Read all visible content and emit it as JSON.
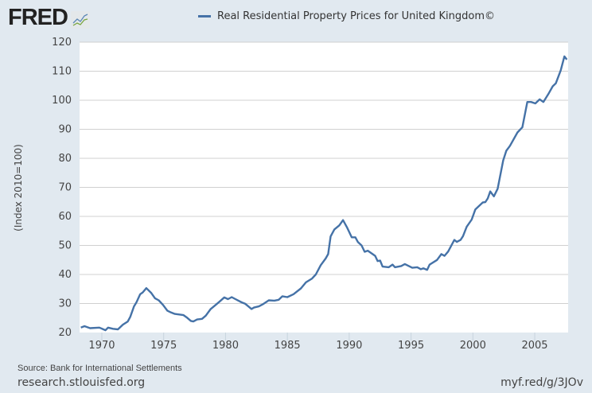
{
  "header": {
    "logo": "FRED",
    "legend_label": "Real Residential Property Prices for United Kingdom©"
  },
  "footer": {
    "source": "Source: Bank for International Settlements",
    "site": "research.stlouisfed.org",
    "short_url": "myf.red/g/3JOv"
  },
  "colors": {
    "series": "#4572a7",
    "background": "#e1e9f0",
    "plot": "#ffffff",
    "grid": "#d0d0d0"
  },
  "chart_data": {
    "type": "line",
    "title": "",
    "xlabel": "",
    "ylabel": "(Index 2010=100)",
    "xlim": [
      1968.2,
      2007.7
    ],
    "ylim": [
      20,
      120
    ],
    "grid": true,
    "legend": "top",
    "x_ticks": [
      "1970",
      "1975",
      "1980",
      "1985",
      "1990",
      "1995",
      "2000",
      "2005"
    ],
    "y_ticks": [
      "20",
      "30",
      "40",
      "50",
      "60",
      "70",
      "80",
      "90",
      "100",
      "110",
      "120"
    ],
    "series": [
      {
        "name": "Real Residential Property Prices for United Kingdom©",
        "points": [
          [
            1968.3,
            21.7
          ],
          [
            1968.6,
            22.2
          ],
          [
            1969.05,
            21.5
          ],
          [
            1969.8,
            21.7
          ],
          [
            1970.3,
            20.8
          ],
          [
            1970.5,
            21.7
          ],
          [
            1970.9,
            21.3
          ],
          [
            1971.3,
            21.1
          ],
          [
            1971.7,
            22.7
          ],
          [
            1972.1,
            23.8
          ],
          [
            1972.3,
            25.4
          ],
          [
            1972.6,
            29.0
          ],
          [
            1972.8,
            30.4
          ],
          [
            1973.1,
            33.2
          ],
          [
            1973.3,
            33.8
          ],
          [
            1973.6,
            35.3
          ],
          [
            1974.0,
            33.6
          ],
          [
            1974.3,
            31.8
          ],
          [
            1974.6,
            31.1
          ],
          [
            1974.95,
            29.5
          ],
          [
            1975.3,
            27.5
          ],
          [
            1975.6,
            26.9
          ],
          [
            1975.9,
            26.4
          ],
          [
            1976.6,
            26.0
          ],
          [
            1976.9,
            25.1
          ],
          [
            1977.2,
            24.0
          ],
          [
            1977.4,
            23.8
          ],
          [
            1977.7,
            24.5
          ],
          [
            1978.1,
            24.7
          ],
          [
            1978.4,
            25.8
          ],
          [
            1978.8,
            28.1
          ],
          [
            1979.2,
            29.5
          ],
          [
            1979.5,
            30.6
          ],
          [
            1979.9,
            32.1
          ],
          [
            1980.2,
            31.5
          ],
          [
            1980.5,
            32.2
          ],
          [
            1980.8,
            31.5
          ],
          [
            1981.3,
            30.4
          ],
          [
            1981.6,
            29.9
          ],
          [
            1982.1,
            28.1
          ],
          [
            1982.3,
            28.6
          ],
          [
            1982.7,
            29.0
          ],
          [
            1983.0,
            29.7
          ],
          [
            1983.5,
            31.1
          ],
          [
            1983.95,
            31.0
          ],
          [
            1984.3,
            31.3
          ],
          [
            1984.6,
            32.5
          ],
          [
            1985.0,
            32.2
          ],
          [
            1985.5,
            33.2
          ],
          [
            1986.1,
            35.2
          ],
          [
            1986.5,
            37.3
          ],
          [
            1987.0,
            38.6
          ],
          [
            1987.3,
            40.0
          ],
          [
            1987.7,
            43.2
          ],
          [
            1988.1,
            45.5
          ],
          [
            1988.3,
            47.0
          ],
          [
            1988.5,
            53.1
          ],
          [
            1988.8,
            55.5
          ],
          [
            1989.2,
            56.9
          ],
          [
            1989.5,
            58.7
          ],
          [
            1989.85,
            56.0
          ],
          [
            1990.2,
            52.8
          ],
          [
            1990.5,
            52.8
          ],
          [
            1990.7,
            51.2
          ],
          [
            1991.0,
            50.0
          ],
          [
            1991.25,
            47.8
          ],
          [
            1991.5,
            48.2
          ],
          [
            1992.1,
            46.4
          ],
          [
            1992.3,
            44.6
          ],
          [
            1992.5,
            44.8
          ],
          [
            1992.7,
            42.7
          ],
          [
            1993.2,
            42.5
          ],
          [
            1993.5,
            43.4
          ],
          [
            1993.7,
            42.5
          ],
          [
            1994.2,
            42.9
          ],
          [
            1994.5,
            43.6
          ],
          [
            1995.1,
            42.3
          ],
          [
            1995.5,
            42.5
          ],
          [
            1995.8,
            41.8
          ],
          [
            1996.0,
            42.1
          ],
          [
            1996.3,
            41.6
          ],
          [
            1996.5,
            43.4
          ],
          [
            1997.1,
            45.0
          ],
          [
            1997.45,
            47.0
          ],
          [
            1997.7,
            46.4
          ],
          [
            1998.0,
            47.9
          ],
          [
            1998.5,
            51.9
          ],
          [
            1998.7,
            51.2
          ],
          [
            1999.0,
            51.9
          ],
          [
            1999.2,
            53.2
          ],
          [
            1999.5,
            56.4
          ],
          [
            1999.9,
            58.9
          ],
          [
            2000.2,
            62.4
          ],
          [
            2000.8,
            64.8
          ],
          [
            2001.0,
            64.9
          ],
          [
            2001.2,
            66.2
          ],
          [
            2001.4,
            68.6
          ],
          [
            2001.7,
            66.9
          ],
          [
            2002.0,
            69.5
          ],
          [
            2002.45,
            79.3
          ],
          [
            2002.7,
            82.6
          ],
          [
            2003.0,
            84.3
          ],
          [
            2003.6,
            88.9
          ],
          [
            2004.0,
            90.7
          ],
          [
            2004.4,
            99.4
          ],
          [
            2004.7,
            99.4
          ],
          [
            2005.05,
            98.9
          ],
          [
            2005.4,
            100.3
          ],
          [
            2005.7,
            99.4
          ],
          [
            2006.1,
            102.1
          ],
          [
            2006.45,
            104.8
          ],
          [
            2006.7,
            105.8
          ],
          [
            2007.1,
            110.3
          ],
          [
            2007.4,
            115.1
          ],
          [
            2007.6,
            114.0
          ]
        ]
      }
    ]
  }
}
